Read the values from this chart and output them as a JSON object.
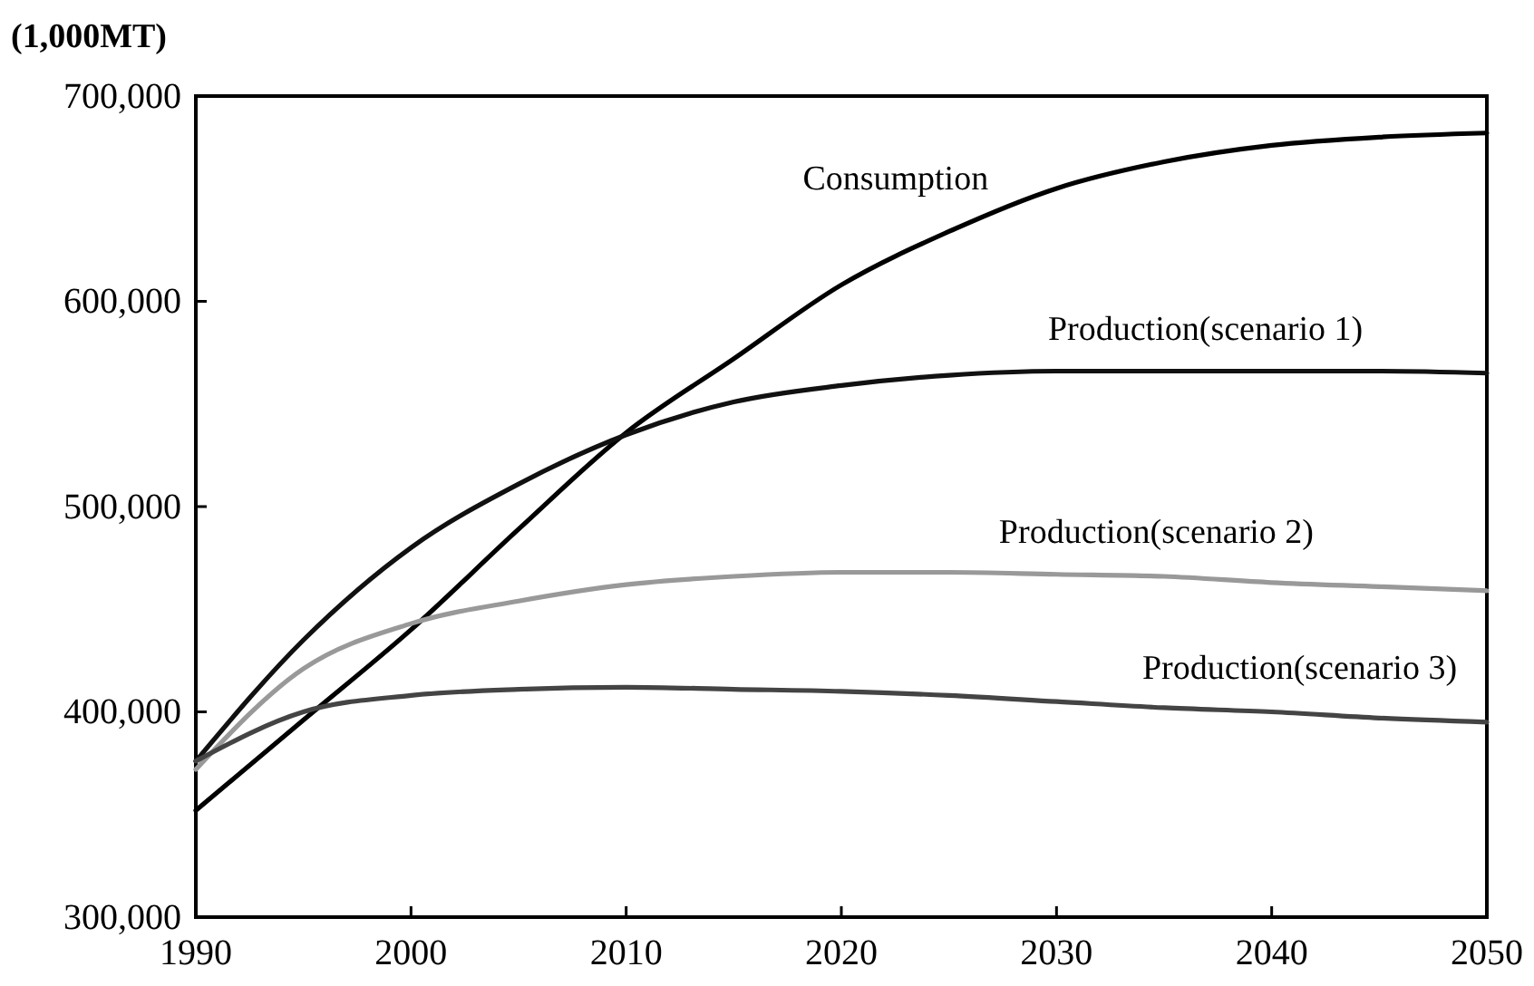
{
  "chart_data": {
    "type": "line",
    "ylabel": "(1,000MT)",
    "x": [
      1990,
      1995,
      2000,
      2005,
      2010,
      2015,
      2020,
      2025,
      2030,
      2035,
      2040,
      2045,
      2050
    ],
    "xlim": [
      1990,
      2050
    ],
    "xticks": [
      1990,
      2000,
      2010,
      2020,
      2030,
      2040,
      2050
    ],
    "ylim": [
      300000,
      700000
    ],
    "yticks": [
      {
        "value": 300000,
        "label": "300,000"
      },
      {
        "value": 400000,
        "label": "400,000"
      },
      {
        "value": 500000,
        "label": "500,000"
      },
      {
        "value": 600000,
        "label": "600,000"
      },
      {
        "value": 700000,
        "label": "700,000"
      }
    ],
    "grid": false,
    "marker": "none",
    "line_style": "solid",
    "series": [
      {
        "name": "Consumption",
        "color": "#000000",
        "values": [
          352000,
          396000,
          440000,
          489000,
          536000,
          572000,
          608000,
          634000,
          655000,
          668000,
          676000,
          680000,
          682000
        ]
      },
      {
        "name": "Production(scenario 1)",
        "color": "#111111",
        "values": [
          376000,
          435000,
          480000,
          511000,
          535000,
          551000,
          559000,
          564000,
          566000,
          566000,
          566000,
          566000,
          565000
        ]
      },
      {
        "name": "Production(scenario 2)",
        "color": "#999999",
        "values": [
          372000,
          421000,
          443000,
          454000,
          462000,
          466000,
          468000,
          468000,
          467000,
          466000,
          463000,
          461000,
          459000
        ]
      },
      {
        "name": "Production(scenario 3)",
        "color": "#444444",
        "values": [
          376000,
          400000,
          408000,
          411000,
          412000,
          411000,
          410000,
          408000,
          405000,
          402000,
          400000,
          397000,
          395000
        ]
      }
    ]
  }
}
